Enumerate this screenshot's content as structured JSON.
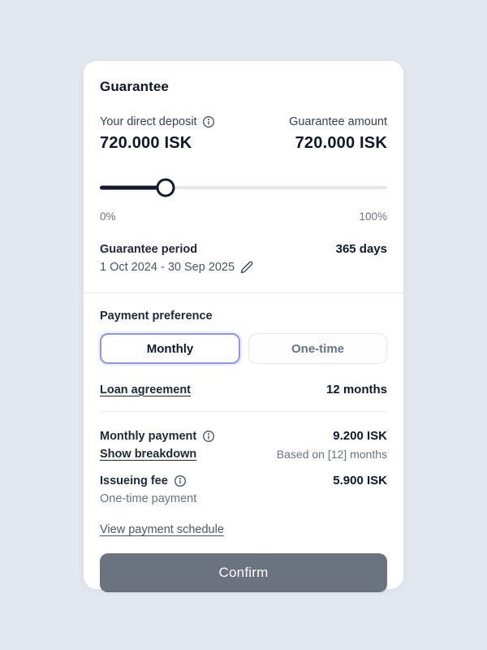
{
  "card": {
    "title": "Guarantee",
    "deposit": {
      "label": "Your direct deposit",
      "value": "720.000 ISK"
    },
    "guarantee_amount": {
      "label": "Guarantee amount",
      "value": "720.000 ISK"
    },
    "slider": {
      "position_percent": 23,
      "min_label": "0%",
      "max_label": "100%"
    },
    "period": {
      "label": "Guarantee period",
      "range": "1 Oct 2024 - 30 Sep 2025",
      "duration": "365 days"
    },
    "payment_preference": {
      "label": "Payment preference",
      "options": [
        {
          "label": "Monthly",
          "selected": true
        },
        {
          "label": "One-time",
          "selected": false
        }
      ]
    },
    "loan_agreement": {
      "label": "Loan agreement",
      "value": "12 months"
    },
    "monthly_payment": {
      "label": "Monthly payment",
      "link": "Show breakdown",
      "value": "9.200 ISK",
      "note": "Based on [12] months"
    },
    "issueing_fee": {
      "label": "Issueing fee",
      "sub": "One-time payment",
      "value": "5.900 ISK"
    },
    "schedule_link": "View payment schedule",
    "confirm_label": "Confirm"
  },
  "colors": {
    "page_background": "#e3e8f0",
    "accent_border": "#8b93f3",
    "slider_fill": "#16182d",
    "confirm_bg": "#6b7280"
  }
}
